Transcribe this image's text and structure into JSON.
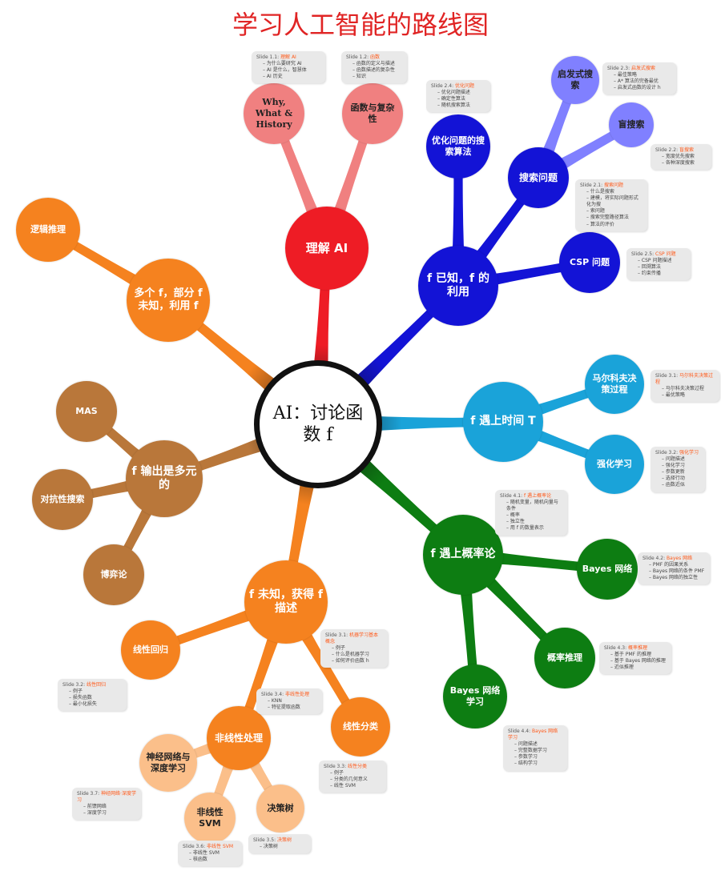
{
  "title": "学习人工智能的路线图",
  "colors": {
    "red": "#ee1c25",
    "pink": "#f08080",
    "blue": "#1313d6",
    "lightblue": "#8080ff",
    "cyan": "#1aa3d9",
    "green": "#0d7d12",
    "orange": "#f5821f",
    "lightorange": "#fbbf8a",
    "brown": "#b9773a"
  },
  "center": "AI：讨论函数 f",
  "nodes": {
    "n_understand": "理解 AI",
    "n_why": "Why, What & History",
    "n_func": "函数与复杂性",
    "n_known": "f 已知，f 的利用",
    "n_opt": "优化问题的搜索算法",
    "n_search": "搜索问题",
    "n_heur": "启发式搜索",
    "n_blind": "盲搜索",
    "n_csp": "CSP 问题",
    "n_time": "f 遇上时间 T",
    "n_mdp": "马尔科夫决策过程",
    "n_rl": "强化学习",
    "n_prob": "f 遇上概率论",
    "n_bnet": "Bayes 网络",
    "n_pinf": "概率推理",
    "n_blearn": "Bayes 网络学习",
    "n_unknown": "f 未知，获得 f 描述",
    "n_linreg": "线性回归",
    "n_lincls": "线性分类",
    "n_nonlin": "非线性处理",
    "n_nn": "神经网络与深度学习",
    "n_svm": "非线性 SVM",
    "n_tree": "决策树",
    "n_multi": "f 输出是多元的",
    "n_mas": "MAS",
    "n_adv": "对抗性搜索",
    "n_game": "博弈论",
    "n_partial": "多个 f，部分 f 未知，利用 f",
    "n_logic": "逻辑推理"
  },
  "notes": {
    "s11": {
      "id": "Slide 1.1:",
      "title": "理解 AI",
      "items": [
        "为什么要研究 AI",
        "AI 是什么，智慧体",
        "AI 历史"
      ]
    },
    "s12": {
      "id": "Slide 1.2:",
      "title": "函数",
      "items": [
        "函数的定义与描述",
        "函数描述的复杂性",
        "知识"
      ]
    },
    "s24": {
      "id": "Slide 2.4:",
      "title": "优化问题",
      "items": [
        "优化问题描述",
        "确定性算法",
        "随机搜索算法"
      ]
    },
    "s23": {
      "id": "Slide 2.3:",
      "title": "启发式搜索",
      "items": [
        "最佳策略",
        "A* 算法的完备最优",
        "启发式函数的设计 h"
      ]
    },
    "s22": {
      "id": "Slide 2.2:",
      "title": "盲搜索",
      "items": [
        "宽度优先搜索",
        "各种深度搜索"
      ]
    },
    "s21": {
      "id": "Slide 2.1:",
      "title": "搜索问题",
      "items": [
        "什么是搜索",
        "建模，将实际问题形式化为搜",
        "索问题",
        "搜索完整路径算法",
        "算法的评价"
      ]
    },
    "s25": {
      "id": "Slide 2.5:",
      "title": "CSP 问题",
      "items": [
        "CSP 问题描述",
        "回溯算法",
        "约束传播"
      ]
    },
    "s31": {
      "id": "Slide 3.1:",
      "title": "马尔科夫决策过程",
      "items": [
        "马尔科夫决策过程",
        "最优策略"
      ]
    },
    "s32": {
      "id": "Slide 3.2:",
      "title": "强化学习",
      "items": [
        "问题描述",
        "强化学习",
        "参数更新",
        "选择行动",
        "函数近似"
      ]
    },
    "s41": {
      "id": "Slide 4.1:",
      "title": "f 遇上概率论",
      "items": [
        "随机变量，随机向量与条件",
        "概率",
        "独立性",
        "用 f 的数量表示"
      ]
    },
    "s42": {
      "id": "Slide 4.2:",
      "title": "Bayes 网络",
      "items": [
        "PMF 的因果关系",
        "Bayes 网络的条件 PMF",
        "Bayes 网络的独立性"
      ]
    },
    "s43": {
      "id": "Slide 4.3:",
      "title": "概率推理",
      "items": [
        "基于 PMF 的推理",
        "基于 Bayes 网络的推理",
        "近似推理"
      ]
    },
    "s44": {
      "id": "Slide 4.4:",
      "title": "Bayes 网络学习",
      "items": [
        "问题描述",
        "完整数据学习",
        "参数学习",
        "结构学习"
      ]
    },
    "s31b": {
      "id": "Slide 3.1:",
      "title": "机器学习基本概念",
      "items": [
        "例子",
        "什么是机器学习",
        "如何评价函数 h"
      ]
    },
    "s32b": {
      "id": "Slide 3.2:",
      "title": "线性回归",
      "items": [
        "例子",
        "损失函数",
        "最小化损失"
      ]
    },
    "s34": {
      "id": "Slide 3.4:",
      "title": "非线性处理",
      "items": [
        "KNN",
        "特征提取函数"
      ]
    },
    "s33": {
      "id": "Slide 3.3:",
      "title": "线性分类",
      "items": [
        "例子",
        "分类的几何意义",
        "线性 SVM"
      ]
    },
    "s37": {
      "id": "Slide 3.7:",
      "title": "神经网络·深度学习",
      "items": [
        "前馈网络",
        "深度学习"
      ]
    },
    "s36": {
      "id": "Slide 3.6:",
      "title": "非线性 SVM",
      "items": [
        "非线性 SVM",
        "核函数"
      ]
    },
    "s35": {
      "id": "Slide 3.5:",
      "title": "决策树",
      "items": [
        "决策树"
      ]
    }
  }
}
